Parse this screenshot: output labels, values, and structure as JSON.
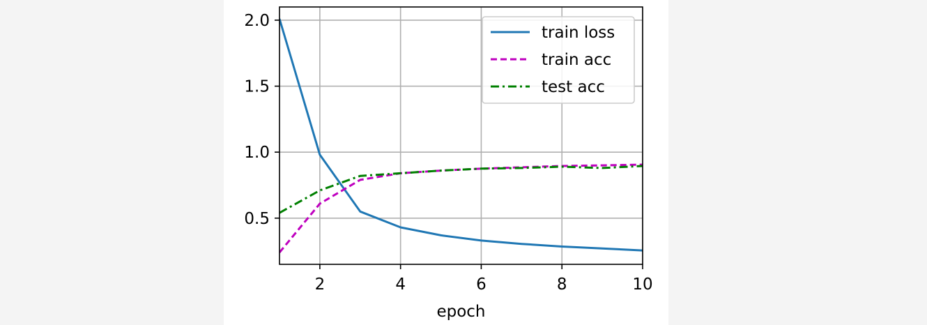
{
  "chart_data": {
    "type": "line",
    "title": "",
    "xlabel": "epoch",
    "ylabel": "",
    "xlim": [
      1,
      10
    ],
    "ylim": [
      0.15,
      2.1
    ],
    "xticks": [
      2,
      4,
      6,
      8,
      10
    ],
    "yticks": [
      0.5,
      1.0,
      1.5,
      2.0
    ],
    "xtick_labels": [
      "2",
      "4",
      "6",
      "8",
      "10"
    ],
    "ytick_labels": [
      "0.5",
      "1.0",
      "1.5",
      "2.0"
    ],
    "grid": true,
    "legend_position": "top-right",
    "x": [
      1,
      2,
      3,
      4,
      5,
      6,
      7,
      8,
      9,
      10
    ],
    "series": [
      {
        "name": "train loss",
        "color": "#1f77b4",
        "style": "solid",
        "values": [
          2.01,
          0.98,
          0.55,
          0.43,
          0.37,
          0.33,
          0.305,
          0.285,
          0.27,
          0.255
        ]
      },
      {
        "name": "train acc",
        "color": "#bf00bf",
        "style": "dashed",
        "values": [
          0.24,
          0.61,
          0.79,
          0.84,
          0.86,
          0.875,
          0.885,
          0.895,
          0.9,
          0.905
        ]
      },
      {
        "name": "test acc",
        "color": "#008000",
        "style": "dashdot",
        "values": [
          0.54,
          0.71,
          0.82,
          0.84,
          0.86,
          0.875,
          0.88,
          0.89,
          0.88,
          0.895
        ]
      }
    ]
  }
}
